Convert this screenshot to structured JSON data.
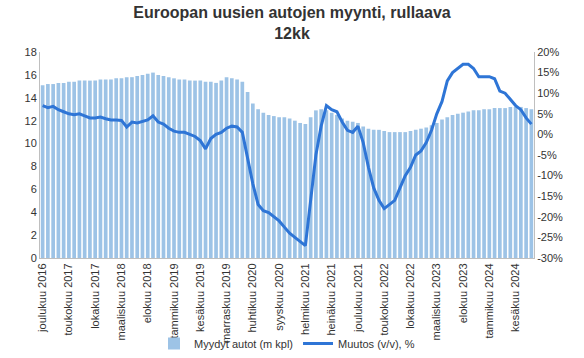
{
  "chart_data": {
    "type": "bar",
    "title": "Euroopan uusien autojen myynti, rullaava 12kk",
    "categories": [
      "joulukuu 2016",
      null,
      null,
      null,
      null,
      "toukokuu 2017",
      null,
      null,
      null,
      null,
      "lokakuu 2017",
      null,
      null,
      null,
      null,
      "maaliskuu 2018",
      null,
      null,
      null,
      null,
      "elokuu 2018",
      null,
      null,
      null,
      null,
      "tammikuu 2019",
      null,
      null,
      null,
      null,
      "kesäkuu 2019",
      null,
      null,
      null,
      null,
      "marraskuu 2019",
      null,
      null,
      null,
      null,
      "huhtikuu 2020",
      null,
      null,
      null,
      null,
      "syyskuu 2020",
      null,
      null,
      null,
      null,
      "helmikuu 2021",
      null,
      null,
      null,
      null,
      "heinäkuu 2021",
      null,
      null,
      null,
      null,
      "joulukuu 2021",
      null,
      null,
      null,
      null,
      "toukokuu 2022",
      null,
      null,
      null,
      null,
      "lokakuu 2022",
      null,
      null,
      null,
      null,
      "maaliskuu 2023",
      null,
      null,
      null,
      null,
      "elokuu 2023",
      null,
      null,
      null,
      null,
      "tammikuu 2024",
      null,
      null,
      null,
      null,
      "kesäkuu 2024",
      null,
      null,
      null
    ],
    "series": [
      {
        "name": "Myydyt autot (m kpl)",
        "type": "bar",
        "color": "#9dc3e6",
        "axis": "y",
        "values": [
          15.1,
          15.2,
          15.2,
          15.3,
          15.3,
          15.4,
          15.4,
          15.5,
          15.5,
          15.5,
          15.5,
          15.6,
          15.6,
          15.6,
          15.7,
          15.7,
          15.8,
          15.8,
          15.9,
          16.0,
          16.1,
          16.2,
          16.0,
          15.9,
          15.8,
          15.7,
          15.6,
          15.6,
          15.5,
          15.5,
          15.5,
          15.4,
          15.4,
          15.3,
          15.5,
          15.8,
          15.7,
          15.6,
          15.4,
          14.5,
          13.5,
          13.0,
          12.7,
          12.5,
          12.4,
          12.3,
          12.3,
          12.2,
          12.0,
          11.8,
          11.7,
          12.3,
          12.9,
          13.0,
          12.9,
          12.7,
          12.5,
          12.2,
          12.0,
          11.9,
          11.8,
          11.5,
          11.3,
          11.2,
          11.2,
          11.1,
          11.0,
          11.0,
          11.0,
          11.0,
          11.1,
          11.2,
          11.3,
          11.4,
          11.6,
          11.8,
          12.1,
          12.3,
          12.5,
          12.6,
          12.7,
          12.8,
          12.9,
          12.9,
          13.0,
          13.0,
          13.1,
          13.1,
          13.1,
          13.2,
          13.2,
          13.2,
          13.1,
          13.0
        ]
      },
      {
        "name": "Muutos (v/v), %",
        "type": "line",
        "color": "#2e75d6",
        "axis": "y2",
        "line_style": "solid",
        "values": [
          7,
          6.5,
          6.8,
          6,
          5.5,
          5,
          4.8,
          5,
          4.5,
          4,
          4,
          4.2,
          3.8,
          3.5,
          3.5,
          3.4,
          1.8,
          3,
          2.8,
          3.2,
          3.5,
          4.5,
          3,
          2.5,
          1.5,
          0.8,
          0.5,
          0.5,
          0,
          -0.5,
          -1.5,
          -3.5,
          -1,
          0,
          0.5,
          1.5,
          2,
          1.8,
          0.5,
          -6,
          -12,
          -17,
          -18.5,
          -19,
          -20,
          -21,
          -22.5,
          -24,
          -25,
          -26,
          -27,
          -16,
          -5,
          2,
          7,
          6,
          5.5,
          3,
          1,
          0.5,
          2,
          -2,
          -8,
          -13,
          -16,
          -18,
          -17,
          -16,
          -13,
          -10,
          -8,
          -5,
          -4,
          -2,
          1,
          5,
          8,
          13,
          15,
          16,
          17,
          17,
          16,
          14,
          14,
          14,
          13.5,
          10.5,
          10,
          8.5,
          7,
          6,
          4,
          2.5
        ]
      }
    ],
    "ylim": [
      0,
      18
    ],
    "yticks": [
      0,
      2,
      4,
      6,
      8,
      10,
      12,
      14,
      16,
      18
    ],
    "y2lim": [
      -30,
      20
    ],
    "y2ticks": [
      {
        "value": -30,
        "label": "-30%"
      },
      {
        "value": -25,
        "label": "-25%"
      },
      {
        "value": -20,
        "label": "-20%"
      },
      {
        "value": -15,
        "label": "-15%"
      },
      {
        "value": -10,
        "label": "-10%"
      },
      {
        "value": -5,
        "label": "-5%"
      },
      {
        "value": 0,
        "label": "0%"
      },
      {
        "value": 5,
        "label": "5%"
      },
      {
        "value": 10,
        "label": "10%"
      },
      {
        "value": 15,
        "label": "15%"
      },
      {
        "value": 20,
        "label": "20%"
      }
    ],
    "grid": false,
    "legend": "bottom"
  }
}
